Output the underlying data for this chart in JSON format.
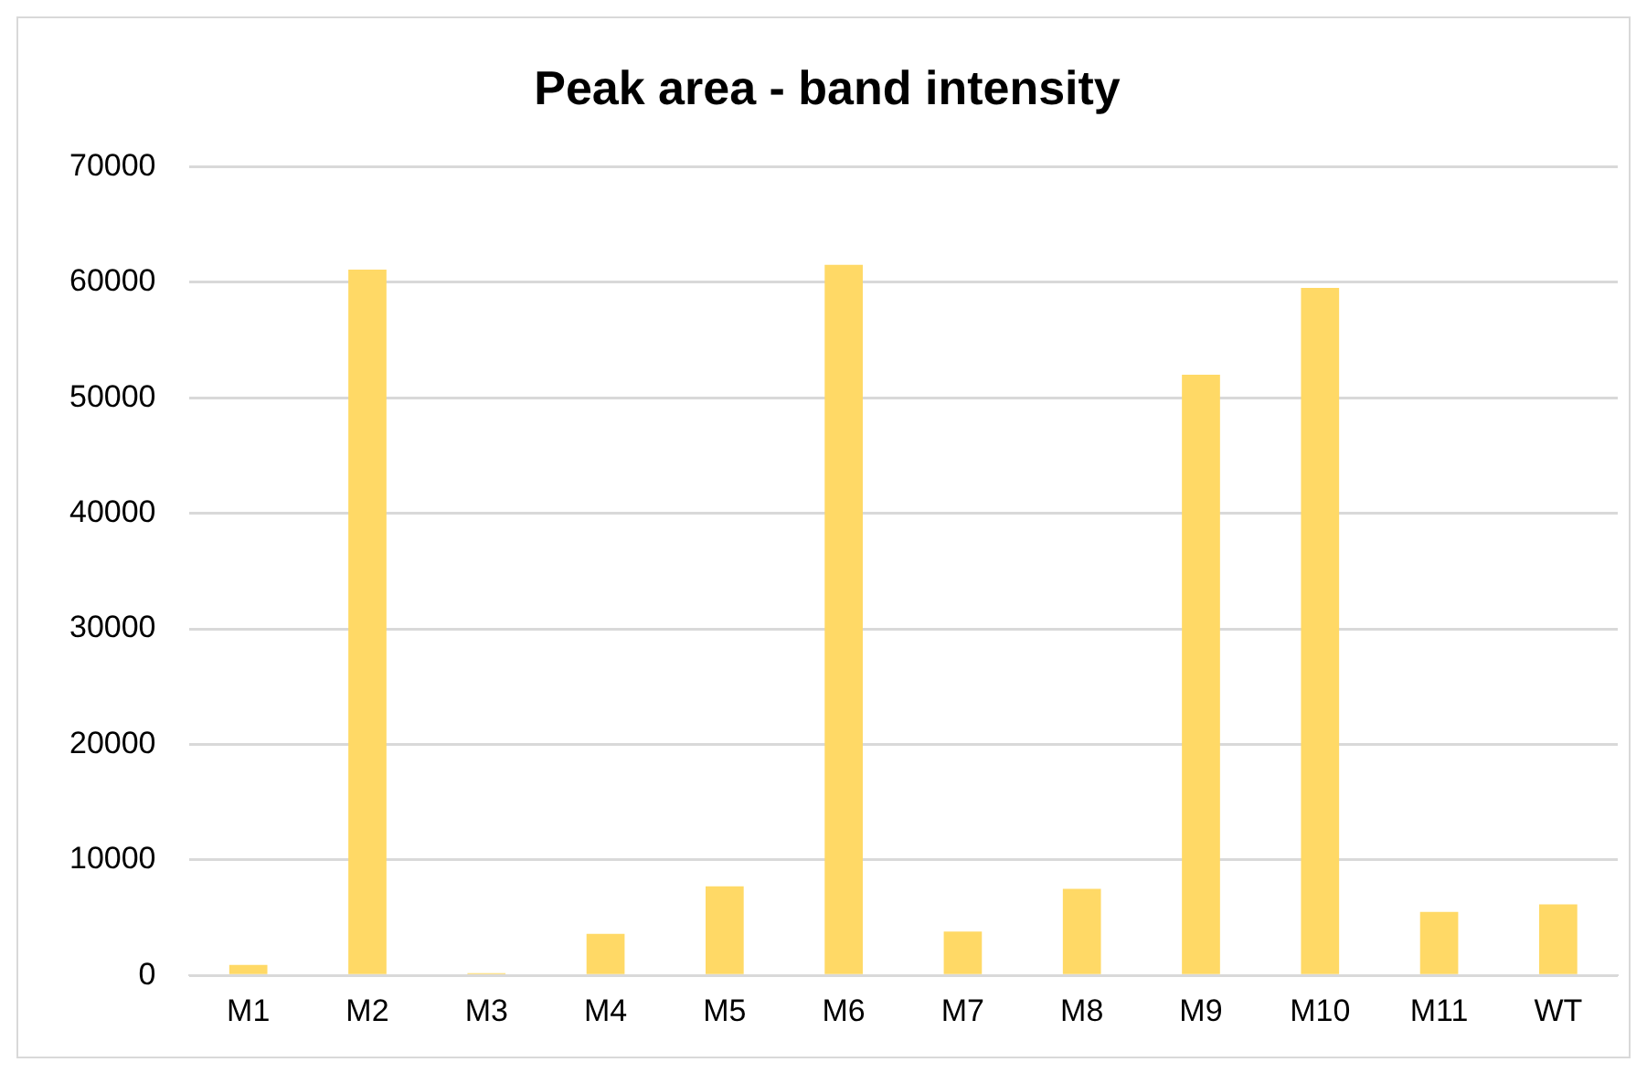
{
  "chart_data": {
    "type": "bar",
    "title": "Peak area - band intensity",
    "categories": [
      "M1",
      "M2",
      "M3",
      "M4",
      "M5",
      "M6",
      "M7",
      "M8",
      "M9",
      "M10",
      "M11",
      "WT"
    ],
    "values": [
      900,
      61100,
      200,
      3600,
      7700,
      61500,
      3800,
      7500,
      52000,
      59500,
      5500,
      6150
    ],
    "color": "#ffd966",
    "ylim": [
      0,
      70000
    ],
    "yticks": [
      0,
      10000,
      20000,
      30000,
      40000,
      50000,
      60000,
      70000
    ],
    "grid": "y"
  }
}
